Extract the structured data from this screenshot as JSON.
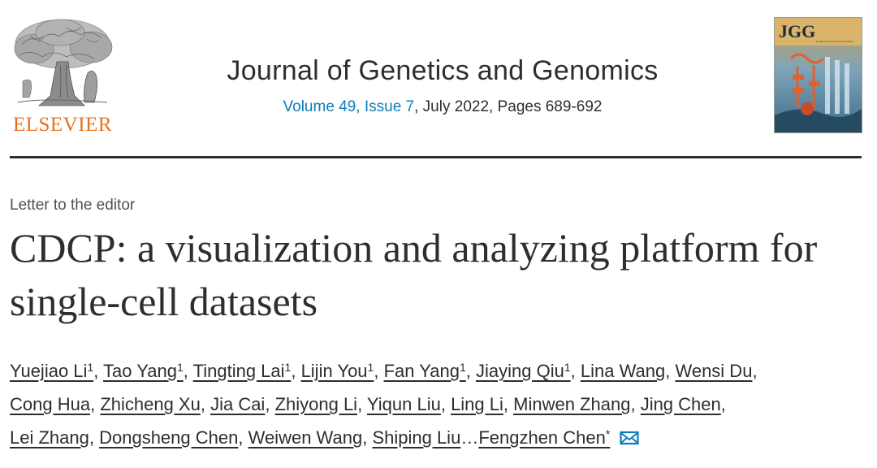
{
  "header": {
    "publisher": "ELSEVIER",
    "journal_title": "Journal of Genetics and Genomics",
    "volume_issue": "Volume 49, Issue 7",
    "date_pages": ", July 2022, Pages 689-692",
    "cover_label": "JGG",
    "cover_subtitle": "Journal of Genetics and Genomics"
  },
  "article": {
    "type": "Letter to the editor",
    "title": "CDCP: a visualization and analyzing platform for single-cell datasets"
  },
  "authors": [
    {
      "name": "Yuejiao Li",
      "sup": "1"
    },
    {
      "name": "Tao Yang",
      "sup": "1"
    },
    {
      "name": "Tingting Lai",
      "sup": "1"
    },
    {
      "name": "Lijin You",
      "sup": "1"
    },
    {
      "name": "Fan Yang",
      "sup": "1"
    },
    {
      "name": "Jiaying Qiu",
      "sup": "1"
    },
    {
      "name": "Lina Wang"
    },
    {
      "name": "Wensi Du"
    },
    {
      "name": "Cong Hua"
    },
    {
      "name": "Zhicheng Xu"
    },
    {
      "name": "Jia Cai"
    },
    {
      "name": "Zhiyong Li"
    },
    {
      "name": "Yiqun Liu"
    },
    {
      "name": "Ling Li"
    },
    {
      "name": "Minwen Zhang"
    },
    {
      "name": "Jing Chen"
    },
    {
      "name": "Lei Zhang"
    },
    {
      "name": "Dongsheng Chen"
    },
    {
      "name": "Weiwen Wang"
    },
    {
      "name": "Shiping Liu"
    },
    {
      "name": "Fengzhen Chen",
      "sup": "*"
    }
  ],
  "authors_ellipsis": "…",
  "colors": {
    "link": "#0c7dbb",
    "elsevier_orange": "#e9711c",
    "text": "#2e2e2e"
  }
}
